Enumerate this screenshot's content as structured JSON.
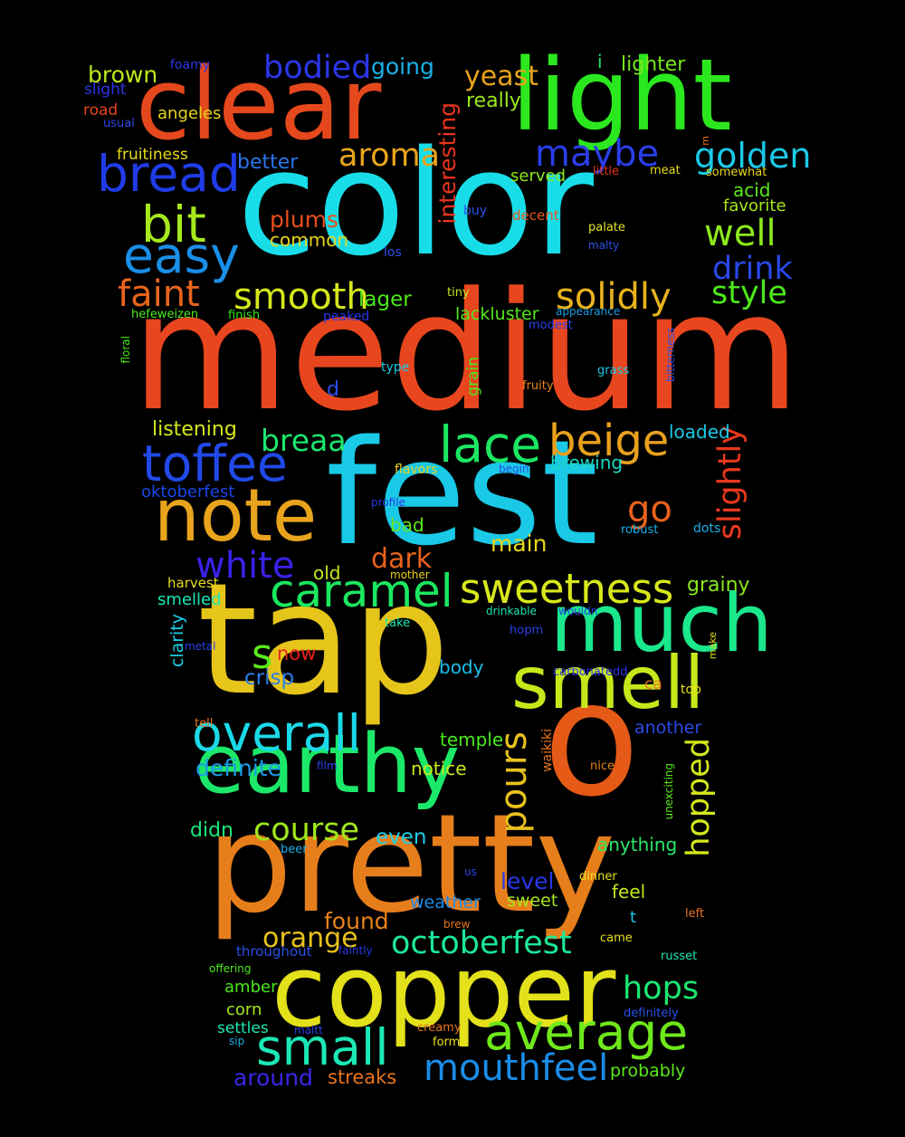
{
  "background": "#000000",
  "words": [
    {
      "text": "medium",
      "color": "#e8461e"
    },
    {
      "text": "color",
      "color": "#18dde8"
    },
    {
      "text": "fest",
      "color": "#19c9e6"
    },
    {
      "text": "tap",
      "color": "#e6c51b"
    },
    {
      "text": "o",
      "color": "#e55a17"
    },
    {
      "text": "pretty",
      "color": "#e67e1c"
    },
    {
      "text": "light",
      "color": "#2be81e"
    },
    {
      "text": "clear",
      "color": "#e5481c"
    },
    {
      "text": "copper",
      "color": "#e3e11a"
    },
    {
      "text": "earthy",
      "color": "#1be868"
    },
    {
      "text": "much",
      "color": "#1be88d"
    },
    {
      "text": "smell",
      "color": "#c6e81b"
    },
    {
      "text": "note",
      "color": "#e8a41c"
    },
    {
      "text": "overall",
      "color": "#1bd9e8"
    },
    {
      "text": "average",
      "color": "#6fe81b"
    },
    {
      "text": "small",
      "color": "#1be8b6"
    },
    {
      "text": "bread",
      "color": "#1f3ce8"
    },
    {
      "text": "toffee",
      "color": "#2149e8"
    },
    {
      "text": "lace",
      "color": "#1be863"
    },
    {
      "text": "caramel",
      "color": "#1be85f"
    },
    {
      "text": "sweetness",
      "color": "#d9e81b"
    },
    {
      "text": "beige",
      "color": "#e8a01c"
    },
    {
      "text": "easy",
      "color": "#1a8fe8"
    },
    {
      "text": "bit",
      "color": "#a6e81b"
    },
    {
      "text": "mouthfeel",
      "color": "#1b8ce8"
    },
    {
      "text": "octoberfest",
      "color": "#1be898"
    },
    {
      "text": "hops",
      "color": "#1be872"
    },
    {
      "text": "pours",
      "color": "#e8c21c"
    },
    {
      "text": "faint",
      "color": "#e8641c"
    },
    {
      "text": "smooth",
      "color": "#d5e81b"
    },
    {
      "text": "solidly",
      "color": "#e8b31c"
    },
    {
      "text": "maybe",
      "color": "#2a3ee8"
    },
    {
      "text": "golden",
      "color": "#1bc9e8"
    },
    {
      "text": "well",
      "color": "#8de81b"
    },
    {
      "text": "drink",
      "color": "#2a48e8"
    },
    {
      "text": "style",
      "color": "#4ce81b"
    },
    {
      "text": "white",
      "color": "#3a22e8"
    },
    {
      "text": "breaa",
      "color": "#1be86e"
    },
    {
      "text": "course",
      "color": "#a0e81b"
    },
    {
      "text": "slightly",
      "color": "#e8381c"
    },
    {
      "text": "hopped",
      "color": "#d4e81b"
    },
    {
      "text": "go",
      "color": "#e8621c"
    },
    {
      "text": "bodied",
      "color": "#2b36e8"
    },
    {
      "text": "aroma",
      "color": "#e8a51c"
    },
    {
      "text": "s",
      "color": "#5be81b"
    },
    {
      "text": "dark",
      "color": "#e8621c"
    },
    {
      "text": "orange",
      "color": "#e8c21c"
    },
    {
      "text": "interesting",
      "color": "#e8341c"
    },
    {
      "text": "definite",
      "color": "#1b9ce8"
    },
    {
      "text": "around",
      "color": "#3a26e8"
    },
    {
      "text": "yeast",
      "color": "#e8a21c"
    },
    {
      "text": "going",
      "color": "#1bb0e8"
    },
    {
      "text": "brown",
      "color": "#bde81b"
    },
    {
      "text": "lighter",
      "color": "#79e81b"
    },
    {
      "text": "plums",
      "color": "#e84e1c"
    },
    {
      "text": "main",
      "color": "#e8d71c"
    },
    {
      "text": "level",
      "color": "#2a36e8"
    },
    {
      "text": "found",
      "color": "#e8831c"
    },
    {
      "text": "crisp",
      "color": "#2b7de8"
    },
    {
      "text": "really",
      "color": "#9ae81b"
    },
    {
      "text": "angeles",
      "color": "#e8d51c"
    },
    {
      "text": "better",
      "color": "#2a74e8"
    },
    {
      "text": "common",
      "color": "#e8d51c"
    },
    {
      "text": "lager",
      "color": "#4ce81b"
    },
    {
      "text": "listening",
      "color": "#d2e81b"
    },
    {
      "text": "oktoberfest",
      "color": "#1b46e8"
    },
    {
      "text": "loaded",
      "color": "#1bc8e8"
    },
    {
      "text": "brewing",
      "color": "#1bd8c4"
    },
    {
      "text": "old",
      "color": "#c6e81b"
    },
    {
      "text": "bad",
      "color": "#5ee81b"
    },
    {
      "text": "grainy",
      "color": "#8ae81b"
    },
    {
      "text": "lackluster",
      "color": "#54e81b"
    },
    {
      "text": "now",
      "color": "#e8221c"
    },
    {
      "text": "body",
      "color": "#1bbee8"
    },
    {
      "text": "temple",
      "color": "#4be81b"
    },
    {
      "text": "notice",
      "color": "#cae81b"
    },
    {
      "text": "even",
      "color": "#1bd0e8"
    },
    {
      "text": "didn",
      "color": "#1be87a"
    },
    {
      "text": "anything",
      "color": "#2be86a"
    },
    {
      "text": "weather",
      "color": "#1b8ce8"
    },
    {
      "text": "sweet",
      "color": "#a5e81b"
    },
    {
      "text": "feel",
      "color": "#c0e81b"
    },
    {
      "text": "streaks",
      "color": "#e8741c"
    },
    {
      "text": "probably",
      "color": "#5be81b"
    },
    {
      "text": "another",
      "color": "#2b4ae8"
    },
    {
      "text": "clarity",
      "color": "#1bd0e8"
    },
    {
      "text": "smelled",
      "color": "#1be8b4"
    },
    {
      "text": "fruitiness",
      "color": "#e8dc1c"
    },
    {
      "text": "served",
      "color": "#8de81b"
    },
    {
      "text": "acid",
      "color": "#5ae81b"
    },
    {
      "text": "favorite",
      "color": "#a7e81b"
    },
    {
      "text": "d",
      "color": "#2a4de8"
    },
    {
      "text": "grain",
      "color": "#4ae81b"
    },
    {
      "text": "settles",
      "color": "#1be8b0"
    },
    {
      "text": "corn",
      "color": "#a5e81b"
    },
    {
      "text": "amber",
      "color": "#4ae81b"
    },
    {
      "text": "throughout",
      "color": "#2a4fe8"
    },
    {
      "text": "harvest",
      "color": "#e8da1c"
    },
    {
      "text": "road",
      "color": "#e8461c"
    },
    {
      "text": "slight",
      "color": "#2a36e8"
    },
    {
      "text": "foamy",
      "color": "#2a38e8"
    },
    {
      "text": "usual",
      "color": "#2a48e8"
    },
    {
      "text": "little",
      "color": "#e8341c"
    },
    {
      "text": "meat",
      "color": "#e8dc1c"
    },
    {
      "text": "somewhat",
      "color": "#e8d51c"
    },
    {
      "text": "buy",
      "color": "#2a52e8"
    },
    {
      "text": "decent",
      "color": "#e8541c"
    },
    {
      "text": "palate",
      "color": "#e8e51c"
    },
    {
      "text": "malty",
      "color": "#2a52e8"
    },
    {
      "text": "los",
      "color": "#2a52e8"
    },
    {
      "text": "tiny",
      "color": "#c2e81b"
    },
    {
      "text": "appearance",
      "color": "#1b9ce8"
    },
    {
      "text": "modest",
      "color": "#2a42e8"
    },
    {
      "text": "peaked",
      "color": "#2a36e8"
    },
    {
      "text": "finish",
      "color": "#36e81b"
    },
    {
      "text": "hefeweizen",
      "color": "#4ae81b"
    },
    {
      "text": "floral",
      "color": "#4ae81b"
    },
    {
      "text": "type",
      "color": "#1bc8e8"
    },
    {
      "text": "grass",
      "color": "#1bc8e8"
    },
    {
      "text": "bitterness",
      "color": "#2a52e8"
    },
    {
      "text": "fruity",
      "color": "#e8841c"
    },
    {
      "text": "flavors",
      "color": "#e8d21c"
    },
    {
      "text": "begin",
      "color": "#2a4fe8"
    },
    {
      "text": "profile",
      "color": "#2a36e8"
    },
    {
      "text": "robust",
      "color": "#1bb0e8"
    },
    {
      "text": "dots",
      "color": "#1bb0e8"
    },
    {
      "text": "mother",
      "color": "#e8d21c"
    },
    {
      "text": "drinkable",
      "color": "#1be8b0"
    },
    {
      "text": "wouldn",
      "color": "#2a42e8"
    },
    {
      "text": "take",
      "color": "#1be8b0"
    },
    {
      "text": "metal",
      "color": "#2a42e8"
    },
    {
      "text": "hopm",
      "color": "#2a42e8"
    },
    {
      "text": "carbonatedd",
      "color": "#2a36e8"
    },
    {
      "text": "make",
      "color": "#e8e01c"
    },
    {
      "text": "ca",
      "color": "#e8741c"
    },
    {
      "text": "top",
      "color": "#e8e01c"
    },
    {
      "text": "tell",
      "color": "#e8741c"
    },
    {
      "text": "waikiki",
      "color": "#e8741c"
    },
    {
      "text": "nice",
      "color": "#e8841c"
    },
    {
      "text": "film",
      "color": "#2a42e8"
    },
    {
      "text": "unexciting",
      "color": "#5ae81b"
    },
    {
      "text": "beer",
      "color": "#1bb0e8"
    },
    {
      "text": "us",
      "color": "#2a42e8"
    },
    {
      "text": "dinner",
      "color": "#e8e01c"
    },
    {
      "text": "brew",
      "color": "#e8741c"
    },
    {
      "text": "t",
      "color": "#1bc8e8"
    },
    {
      "text": "left",
      "color": "#e8741c"
    },
    {
      "text": "came",
      "color": "#e8e01c"
    },
    {
      "text": "faintly",
      "color": "#2a36e8"
    },
    {
      "text": "offering",
      "color": "#4ae81b"
    },
    {
      "text": "russet",
      "color": "#1be8b0"
    },
    {
      "text": "definitely",
      "color": "#2a52e8"
    },
    {
      "text": "creamy",
      "color": "#e8741c"
    },
    {
      "text": "maltt",
      "color": "#2a42e8"
    },
    {
      "text": "form",
      "color": "#e8e01c"
    },
    {
      "text": "sip",
      "color": "#1bb0e8"
    },
    {
      "text": "m",
      "color": "#e8741c"
    },
    {
      "text": "i",
      "color": "#1be868"
    }
  ]
}
